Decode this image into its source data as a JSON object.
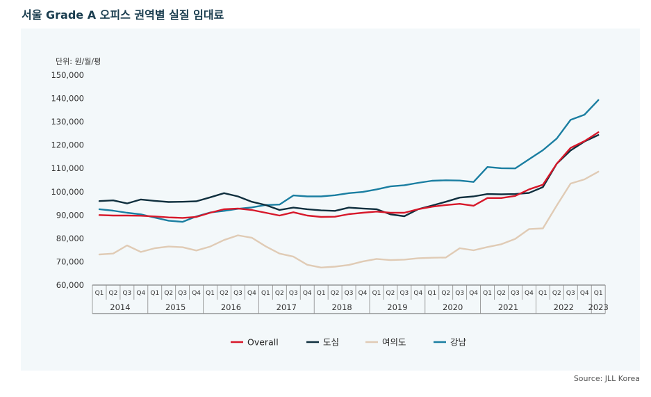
{
  "title": "서울 Grade A 오피스 권역별 실질 임대료",
  "source": "Source: JLL Korea",
  "chart_data": {
    "type": "line",
    "unit_label": "단위: 원/월/평",
    "ylim": [
      60000,
      150000
    ],
    "y_ticks": [
      "150,000",
      "140,000",
      "130,000",
      "120,000",
      "110,000",
      "100,000",
      "90,000",
      "80,000",
      "70,000",
      "60,000"
    ],
    "x": [
      "2014 Q1",
      "2014 Q2",
      "2014 Q3",
      "2014 Q4",
      "2015 Q1",
      "2015 Q2",
      "2015 Q3",
      "2015 Q4",
      "2016 Q1",
      "2016 Q2",
      "2016 Q3",
      "2016 Q4",
      "2017 Q1",
      "2017 Q2",
      "2017 Q3",
      "2017 Q4",
      "2018 Q1",
      "2018 Q2",
      "2018 Q3",
      "2018 Q4",
      "2019 Q1",
      "2019 Q2",
      "2019 Q3",
      "2019 Q4",
      "2020 Q1",
      "2020 Q2",
      "2020 Q3",
      "2020 Q4",
      "2021 Q1",
      "2021 Q2",
      "2021 Q3",
      "2021 Q4",
      "2022 Q1",
      "2022 Q2",
      "2022 Q3",
      "2022 Q4",
      "2023 Q1"
    ],
    "quarter_labels": [
      "Q1",
      "Q2",
      "Q3",
      "Q4"
    ],
    "years": [
      "2014",
      "2015",
      "2016",
      "2017",
      "2018",
      "2019",
      "2020",
      "2021",
      "2022",
      "2023"
    ],
    "grid": false,
    "legend_position": "bottom",
    "series": [
      {
        "name": "Overall",
        "color": "#d7182a",
        "values": [
          90000,
          89800,
          89800,
          89700,
          89400,
          89000,
          88800,
          89200,
          91000,
          92500,
          92800,
          92200,
          91000,
          89800,
          91200,
          89800,
          89200,
          89300,
          90400,
          91000,
          91500,
          91000,
          91000,
          92500,
          93600,
          94300,
          94800,
          94000,
          97300,
          97300,
          98200,
          101000,
          103000,
          112000,
          118800,
          121700,
          125500
        ]
      },
      {
        "name": "도심",
        "color": "#0f2f3e",
        "values": [
          96000,
          96300,
          95000,
          96700,
          96100,
          95600,
          95700,
          95900,
          97600,
          99400,
          98000,
          95700,
          94300,
          92200,
          93200,
          92500,
          92000,
          91800,
          93200,
          92800,
          92500,
          90300,
          89500,
          92500,
          94100,
          95700,
          97500,
          98000,
          99000,
          98900,
          99000,
          99500,
          102000,
          112000,
          117700,
          121500,
          124300
        ]
      },
      {
        "name": "여의도",
        "color": "#e0cbb5",
        "values": [
          73100,
          73500,
          77000,
          74200,
          75800,
          76500,
          76200,
          74800,
          76500,
          79300,
          81300,
          80300,
          76600,
          73500,
          72200,
          68700,
          67500,
          67900,
          68600,
          70100,
          71200,
          70700,
          70900,
          71500,
          71700,
          71800,
          75800,
          74900,
          76300,
          77500,
          79800,
          84000,
          84300,
          94100,
          103500,
          105300,
          108600
        ]
      },
      {
        "name": "강남",
        "color": "#1a7ea1",
        "values": [
          92500,
          91900,
          91000,
          90300,
          88900,
          87600,
          87100,
          89400,
          91100,
          91800,
          92700,
          93300,
          94300,
          94500,
          98400,
          98000,
          98000,
          98500,
          99400,
          99900,
          101000,
          102300,
          102800,
          103800,
          104700,
          104900,
          104800,
          104200,
          110600,
          110100,
          110000,
          113900,
          117800,
          122800,
          130800,
          133000,
          139300
        ]
      }
    ]
  }
}
